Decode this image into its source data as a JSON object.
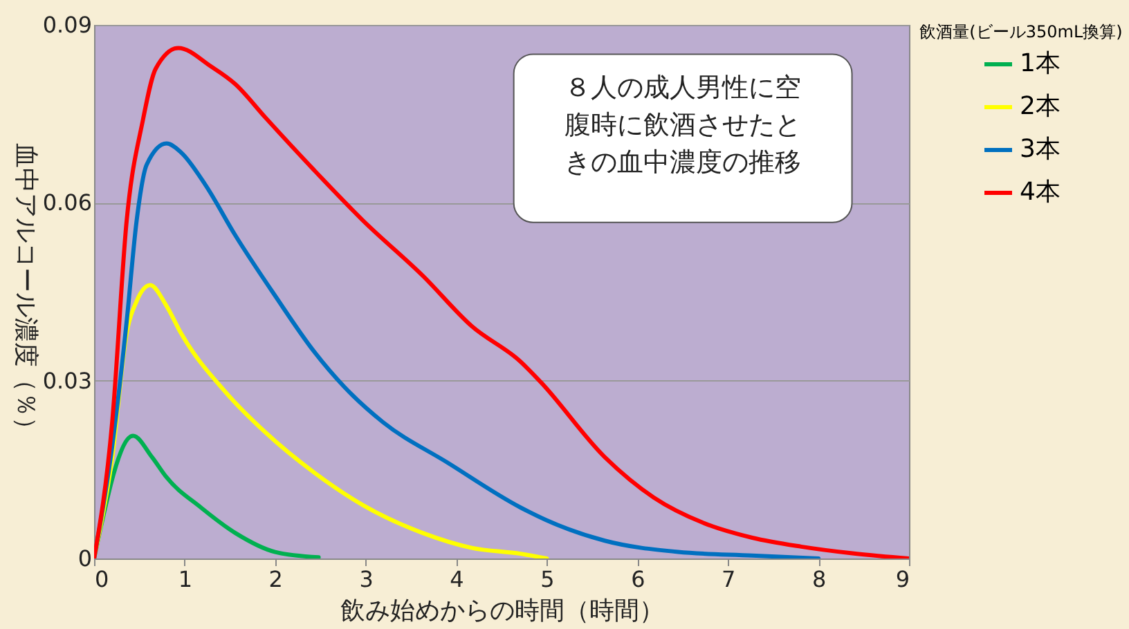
{
  "chart_data": {
    "type": "line",
    "xlabel": "飲み始めからの時間（時間）",
    "ylabel": "血中アルコール濃度（％）",
    "legend_title": "飲酒量(ビール350mL換算)",
    "xlim": [
      0,
      9
    ],
    "ylim": [
      0,
      0.09
    ],
    "xticks": [
      0,
      1,
      2,
      3,
      4,
      5,
      6,
      7,
      8,
      9
    ],
    "yticks": [
      0,
      0.03,
      0.06,
      0.09
    ],
    "grid": "y",
    "legend": "right",
    "annotations": [
      "８人の成人男性に空腹時に飲酒させたときの血中濃度の推移"
    ],
    "series": [
      {
        "name": "1本",
        "color": "#00b050",
        "x": [
          0,
          0.43,
          0.64,
          0.8,
          1.18,
          1.56,
          2.0,
          2.48
        ],
        "values": [
          0,
          0.0207,
          0.0171,
          0.0137,
          0.0086,
          0.0043,
          0.0011,
          0.0002
        ]
      },
      {
        "name": "2本",
        "color": "#ffff00",
        "x": [
          0,
          0.2,
          0.36,
          0.47,
          0.62,
          0.8,
          0.96,
          1.45,
          1.89,
          2.43,
          2.97,
          3.63,
          4.17,
          4.71,
          5.0
        ],
        "values": [
          0,
          0.017,
          0.038,
          0.0434,
          0.0461,
          0.0426,
          0.038,
          0.0281,
          0.0213,
          0.0145,
          0.009,
          0.0043,
          0.0018,
          0.0008,
          0
        ]
      },
      {
        "name": "3本",
        "color": "#0070c0",
        "x": [
          0,
          0.2,
          0.36,
          0.47,
          0.58,
          0.8,
          0.96,
          1.23,
          1.56,
          2.0,
          2.43,
          2.76,
          3.19,
          3.9,
          4.71,
          4.99,
          5.64,
          6.45,
          7.27,
          8.0
        ],
        "values": [
          0,
          0.0189,
          0.04,
          0.057,
          0.0664,
          0.07,
          0.0685,
          0.063,
          0.0545,
          0.0443,
          0.0349,
          0.029,
          0.023,
          0.0162,
          0.0086,
          0.0065,
          0.003,
          0.0011,
          0.0005,
          0
        ]
      },
      {
        "name": "4本",
        "color": "#ff0000",
        "x": [
          0,
          0.2,
          0.36,
          0.54,
          0.68,
          0.93,
          1.29,
          1.56,
          1.89,
          2.43,
          2.97,
          3.63,
          4.17,
          4.71,
          4.93,
          5.64,
          6.18,
          6.73,
          7.27,
          7.81,
          8.36,
          9.0
        ],
        "values": [
          0,
          0.023,
          0.057,
          0.074,
          0.0826,
          0.0861,
          0.083,
          0.08,
          0.0744,
          0.0655,
          0.057,
          0.0477,
          0.0392,
          0.0332,
          0.0298,
          0.0171,
          0.0103,
          0.006,
          0.0035,
          0.002,
          0.0009,
          0
        ]
      }
    ]
  }
}
